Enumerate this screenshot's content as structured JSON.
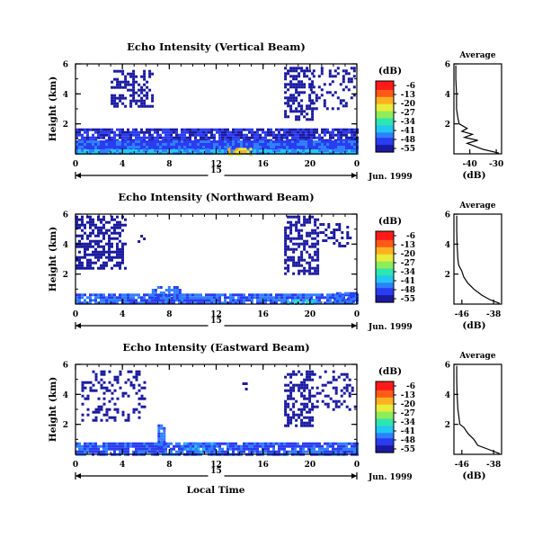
{
  "figure": {
    "xaxis_label": "Local Time",
    "date_label": "Jun. 1999",
    "day_label": "15",
    "colorbar_unit": "(dB)",
    "colorbar_ticks": [
      "-6",
      "-13",
      "-20",
      "-27",
      "-34",
      "-41",
      "-48",
      "-55"
    ],
    "colormap": [
      "#1a1aa0",
      "#2a3cf0",
      "#2f7fff",
      "#22c8f0",
      "#2ee6b0",
      "#8fec5a",
      "#e8ec3a",
      "#ffb020",
      "#ff5a18",
      "#ff1a1a"
    ]
  },
  "chart_data": [
    {
      "type": "heatmap",
      "title": "Echo Intensity (Vertical Beam)",
      "ylabel": "Height (km)",
      "xticks": [
        "0",
        "4",
        "8",
        "12",
        "16",
        "20",
        "0"
      ],
      "yticks": [
        "6",
        "4",
        "2"
      ],
      "xlim": [
        0,
        24
      ],
      "ylim": [
        0,
        6
      ],
      "colorbar_range_db": [
        -55,
        -6
      ],
      "regions": [
        {
          "t": [
            3.0,
            6.7
          ],
          "h": [
            3.2,
            5.6
          ],
          "db": -55,
          "density": 0.45
        },
        {
          "t": [
            17.8,
            20.3
          ],
          "h": [
            2.2,
            5.8
          ],
          "db": -55,
          "density": 0.55
        },
        {
          "t": [
            20.0,
            23.8
          ],
          "h": [
            3.0,
            5.8
          ],
          "db": -55,
          "density": 0.25
        },
        {
          "t": [
            0,
            24
          ],
          "h": [
            0.9,
            1.7
          ],
          "db": -50,
          "density": 0.8
        },
        {
          "t": [
            0,
            24
          ],
          "h": [
            0.3,
            0.9
          ],
          "db": -46,
          "density": 1.0
        },
        {
          "t": [
            0,
            24
          ],
          "h": [
            0.0,
            0.3
          ],
          "db": -40,
          "density": 1.0
        },
        {
          "t": [
            13.0,
            15.0
          ],
          "h": [
            0.0,
            0.4
          ],
          "db": -20,
          "density": 0.6
        }
      ],
      "average": {
        "title": "Average",
        "xlabel": "(dB)",
        "xticks": [
          "-40",
          "-30"
        ],
        "xlim": [
          -46,
          -28
        ],
        "yticks": [
          "6",
          "4",
          "2"
        ],
        "ylim": [
          0,
          6
        ],
        "profile": [
          {
            "h": 0.05,
            "db": -29
          },
          {
            "h": 0.3,
            "db": -35
          },
          {
            "h": 0.5,
            "db": -38
          },
          {
            "h": 0.7,
            "db": -41
          },
          {
            "h": 0.9,
            "db": -37
          },
          {
            "h": 1.1,
            "db": -42
          },
          {
            "h": 1.3,
            "db": -39
          },
          {
            "h": 1.5,
            "db": -43
          },
          {
            "h": 1.7,
            "db": -41
          },
          {
            "h": 2.0,
            "db": -44
          },
          {
            "h": 2.4,
            "db": -44.5
          },
          {
            "h": 3.0,
            "db": -45
          },
          {
            "h": 4.0,
            "db": -45
          },
          {
            "h": 5.0,
            "db": -45.3
          },
          {
            "h": 5.9,
            "db": -45.3
          }
        ]
      }
    },
    {
      "type": "heatmap",
      "title": "Echo Intensity (Northward Beam)",
      "ylabel": "Height (km)",
      "xticks": [
        "0",
        "4",
        "8",
        "12",
        "16",
        "20",
        "0"
      ],
      "yticks": [
        "6",
        "4",
        "2"
      ],
      "xlim": [
        0,
        24
      ],
      "ylim": [
        0,
        6
      ],
      "colorbar_range_db": [
        -55,
        -6
      ],
      "regions": [
        {
          "t": [
            0,
            4.2
          ],
          "h": [
            2.3,
            5.9
          ],
          "db": -55,
          "density": 0.55
        },
        {
          "t": [
            5.3,
            5.8
          ],
          "h": [
            4.2,
            4.8
          ],
          "db": -55,
          "density": 0.4
        },
        {
          "t": [
            17.8,
            20.8
          ],
          "h": [
            2.0,
            5.9
          ],
          "db": -55,
          "density": 0.55
        },
        {
          "t": [
            20.8,
            23.5
          ],
          "h": [
            3.8,
            5.4
          ],
          "db": -55,
          "density": 0.3
        },
        {
          "t": [
            0,
            24
          ],
          "h": [
            0.0,
            0.7
          ],
          "db": -45,
          "density": 0.9
        },
        {
          "t": [
            6.5,
            9.0
          ],
          "h": [
            0.3,
            1.2
          ],
          "db": -44,
          "density": 0.7
        },
        {
          "t": [
            18.0,
            20.5
          ],
          "h": [
            0.0,
            0.3
          ],
          "db": -36,
          "density": 0.6
        },
        {
          "t": [
            22.0,
            24
          ],
          "h": [
            0.2,
            0.8
          ],
          "db": -45,
          "density": 0.7
        }
      ],
      "average": {
        "title": "Average",
        "xlabel": "(dB)",
        "xticks": [
          "-46",
          "-38"
        ],
        "xlim": [
          -48,
          -36
        ],
        "yticks": [
          "6",
          "4",
          "2"
        ],
        "ylim": [
          0,
          6
        ],
        "profile": [
          {
            "h": 0.05,
            "db": -36.5
          },
          {
            "h": 0.3,
            "db": -39
          },
          {
            "h": 0.6,
            "db": -41
          },
          {
            "h": 1.0,
            "db": -43
          },
          {
            "h": 1.4,
            "db": -44.5
          },
          {
            "h": 1.8,
            "db": -45.5
          },
          {
            "h": 2.2,
            "db": -46
          },
          {
            "h": 2.6,
            "db": -46.8
          },
          {
            "h": 3.0,
            "db": -47
          },
          {
            "h": 4.0,
            "db": -47.2
          },
          {
            "h": 5.0,
            "db": -47.3
          },
          {
            "h": 5.9,
            "db": -47.3
          }
        ]
      }
    },
    {
      "type": "heatmap",
      "title": "Echo Intensity (Eastward Beam)",
      "ylabel": "Height (km)",
      "xticks": [
        "0",
        "4",
        "8",
        "12",
        "16",
        "20",
        "0"
      ],
      "yticks": [
        "6",
        "4",
        "2"
      ],
      "xlim": [
        0,
        24
      ],
      "ylim": [
        0,
        6
      ],
      "colorbar_range_db": [
        -55,
        -6
      ],
      "regions": [
        {
          "t": [
            0.5,
            6.0
          ],
          "h": [
            2.2,
            5.6
          ],
          "db": -55,
          "density": 0.3
        },
        {
          "t": [
            14.0,
            14.5
          ],
          "h": [
            4.4,
            4.8
          ],
          "db": -55,
          "density": 0.5
        },
        {
          "t": [
            17.8,
            20.3
          ],
          "h": [
            1.8,
            5.6
          ],
          "db": -55,
          "density": 0.55
        },
        {
          "t": [
            20.3,
            23.8
          ],
          "h": [
            3.0,
            5.6
          ],
          "db": -55,
          "density": 0.3
        },
        {
          "t": [
            0,
            24
          ],
          "h": [
            0.0,
            0.8
          ],
          "db": -46,
          "density": 0.9
        },
        {
          "t": [
            7.0,
            7.6
          ],
          "h": [
            0.4,
            2.0
          ],
          "db": -45,
          "density": 0.9
        },
        {
          "t": [
            9.0,
            12.0
          ],
          "h": [
            0.2,
            0.8
          ],
          "db": -42,
          "density": 0.6
        }
      ],
      "average": {
        "title": "Average",
        "xlabel": "(dB)",
        "xticks": [
          "-46",
          "-38"
        ],
        "xlim": [
          -48,
          -36
        ],
        "yticks": [
          "6",
          "4",
          "2"
        ],
        "ylim": [
          0,
          6
        ],
        "profile": [
          {
            "h": 0.05,
            "db": -36.5
          },
          {
            "h": 0.3,
            "db": -39
          },
          {
            "h": 0.6,
            "db": -42
          },
          {
            "h": 1.0,
            "db": -43
          },
          {
            "h": 1.4,
            "db": -44.5
          },
          {
            "h": 1.8,
            "db": -45.5
          },
          {
            "h": 2.0,
            "db": -46.5
          },
          {
            "h": 2.6,
            "db": -46.8
          },
          {
            "h": 3.0,
            "db": -47
          },
          {
            "h": 4.0,
            "db": -47.2
          },
          {
            "h": 5.0,
            "db": -47.3
          },
          {
            "h": 5.9,
            "db": -47.3
          }
        ]
      }
    }
  ]
}
